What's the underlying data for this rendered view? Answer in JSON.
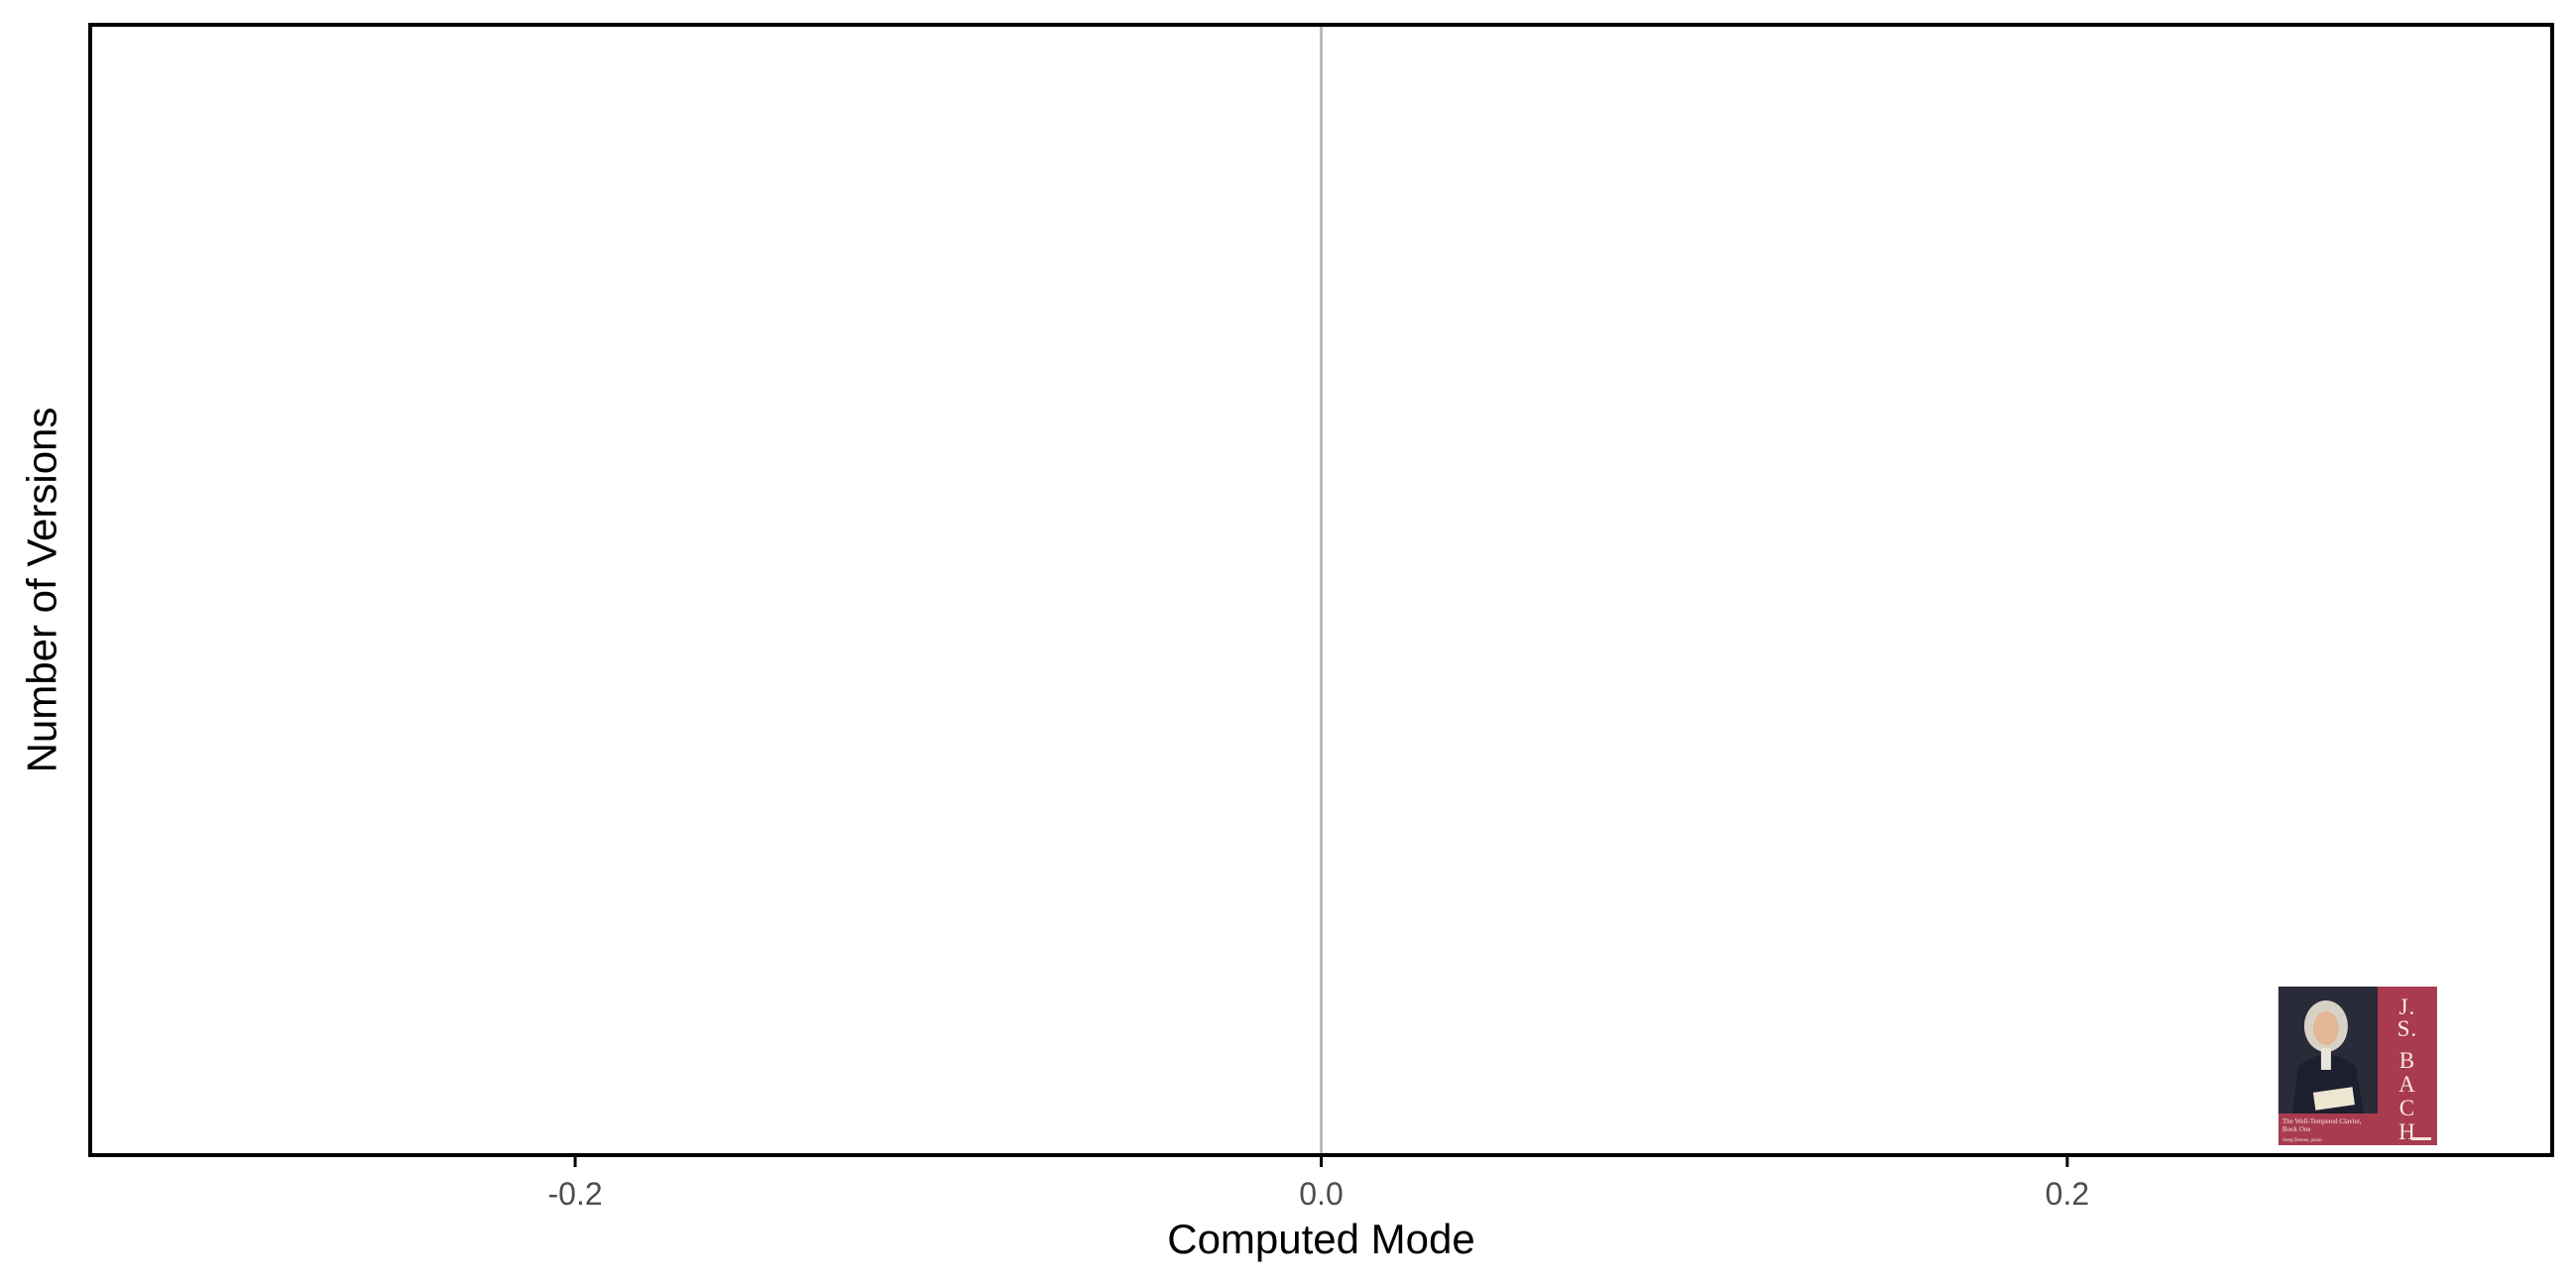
{
  "chart_data": {
    "type": "scatter",
    "title": "",
    "xlabel": "Computed Mode",
    "ylabel": "Number of Versions",
    "xlim": [
      -0.33,
      0.33
    ],
    "ylim": [
      0,
      1
    ],
    "x_ticks": [
      -0.2,
      0.0,
      0.2
    ],
    "x_tick_labels": [
      "-0.2",
      "0.0",
      "0.2"
    ],
    "y_ticks": [],
    "reference_line": {
      "x": 0.0,
      "color": "#bdbdbd"
    },
    "grid": false,
    "legend": "none",
    "points": [
      {
        "x": 0.28,
        "y": 0,
        "marker": "album-cover",
        "cover": {
          "initials": "J.S.",
          "name": "BACH",
          "work_title": "The Well-Tempered Clavier,",
          "work_subtitle": "Book One",
          "performer": "Joerg Demus, piano",
          "label_code": "",
          "background_color": "#a93b4f"
        }
      }
    ],
    "colors": {
      "axis": "#000000",
      "tick_text": "#4d4d4d",
      "zero_line": "#bdbdbd"
    }
  }
}
